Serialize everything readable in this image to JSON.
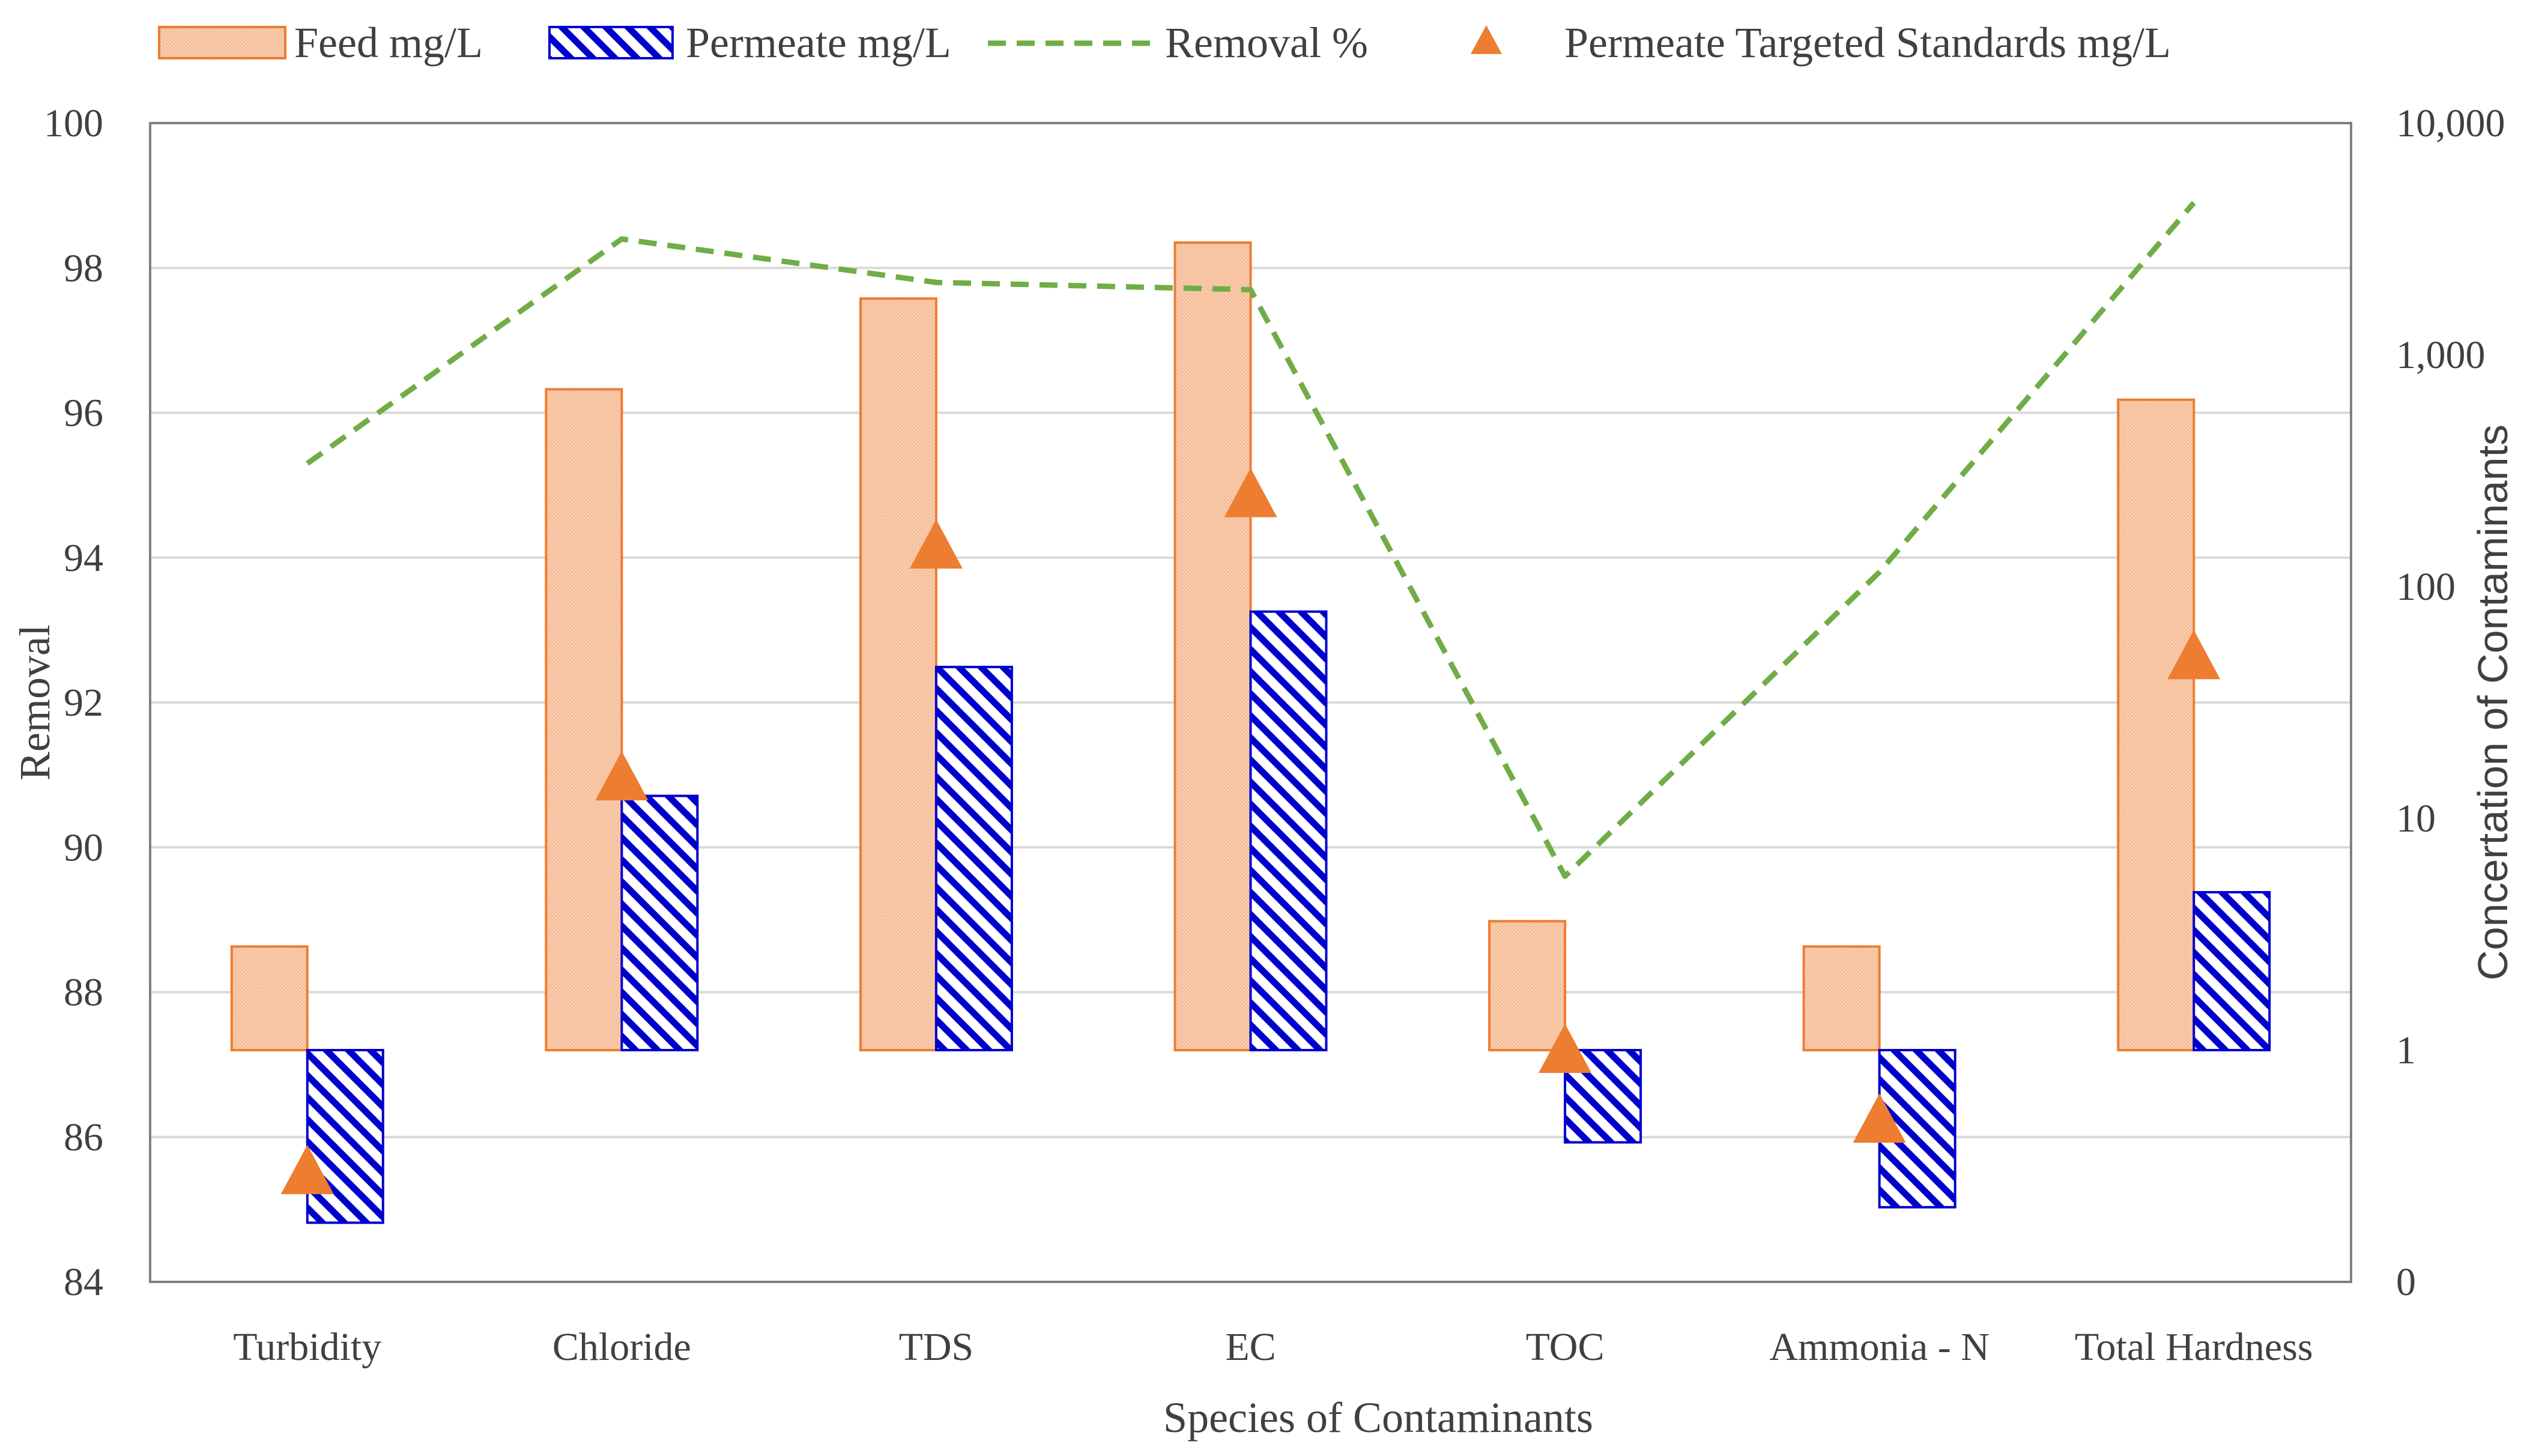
{
  "chart_data": {
    "type": "bar",
    "title": "",
    "categories": [
      "Turbidity",
      "Chloride",
      "TDS",
      "EC",
      "TOC",
      "Ammonia - N",
      "Total Hardness"
    ],
    "xlabel": "Species of Contaminants",
    "ylabel": "Removal",
    "y2label": "Concertation of Contaminants",
    "ylim": [
      84,
      100
    ],
    "yticks": [
      "84",
      "86",
      "88",
      "90",
      "92",
      "94",
      "96",
      "98",
      "100"
    ],
    "y2scale": "log",
    "y2lim": [
      0.1,
      10000
    ],
    "y2ticks": [
      {
        "value": 0.1,
        "label": "0"
      },
      {
        "value": 1,
        "label": "1"
      },
      {
        "value": 10,
        "label": "10"
      },
      {
        "value": 100,
        "label": "100"
      },
      {
        "value": 1000,
        "label": "1,000"
      },
      {
        "value": 10000,
        "label": "10,000"
      }
    ],
    "bar_baseline": 1,
    "grid": true,
    "legend_position": "top",
    "series": [
      {
        "name": "Feed mg/L",
        "kind": "bar",
        "axis": "right",
        "color": "#ED7D31",
        "fill": "#F8CBAD",
        "values": [
          2.8,
          710,
          1750,
          3050,
          3.6,
          2.8,
          640
        ]
      },
      {
        "name": "Permeate mg/L",
        "kind": "bar",
        "axis": "right",
        "color": "#0000CC",
        "fill": "#FFFFFF",
        "values": [
          0.18,
          12.5,
          45,
          78,
          0.4,
          0.21,
          4.8
        ]
      },
      {
        "name": "Removal %",
        "kind": "line",
        "axis": "left",
        "color": "#70AD47",
        "values": [
          95.3,
          98.4,
          97.8,
          97.7,
          89.6,
          93.8,
          98.9
        ]
      },
      {
        "name": "Permeate Targeted Standards mg/L",
        "kind": "marker",
        "axis": "right",
        "color": "#ED7D31",
        "values": [
          0.3,
          15,
          150,
          250,
          1,
          0.5,
          50
        ]
      }
    ]
  }
}
